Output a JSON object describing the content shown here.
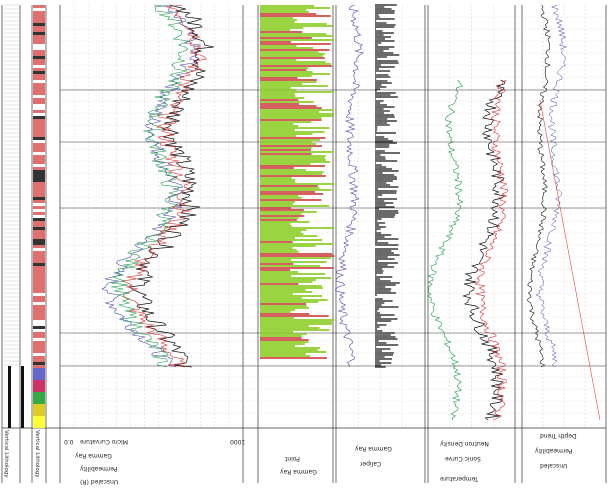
{
  "left_labels": [
    "Vertical Lithology",
    "Vertical Lithology"
  ],
  "headers": {
    "track1": [
      "Micro Curvature",
      "Gamma Ray",
      "Permeability",
      "Unscaled (R)"
    ],
    "track1_scale": [
      "0.0",
      "1000"
    ],
    "track2": [
      "Point",
      "Gamma Ray"
    ],
    "track3": [
      "Gamma Ray",
      "Caliper"
    ],
    "track4": [
      "Neutron Density",
      "Sonic Curve",
      "Temperature"
    ],
    "track5": [
      "Depth Trend",
      "Permeability",
      "Unscaled"
    ]
  },
  "colors": {
    "gamma": "#4444aa",
    "red": "#dd2222",
    "green": "#119944",
    "black": "#111111",
    "fill_green": "#88cc22",
    "lith_pink": "#e07070"
  }
}
